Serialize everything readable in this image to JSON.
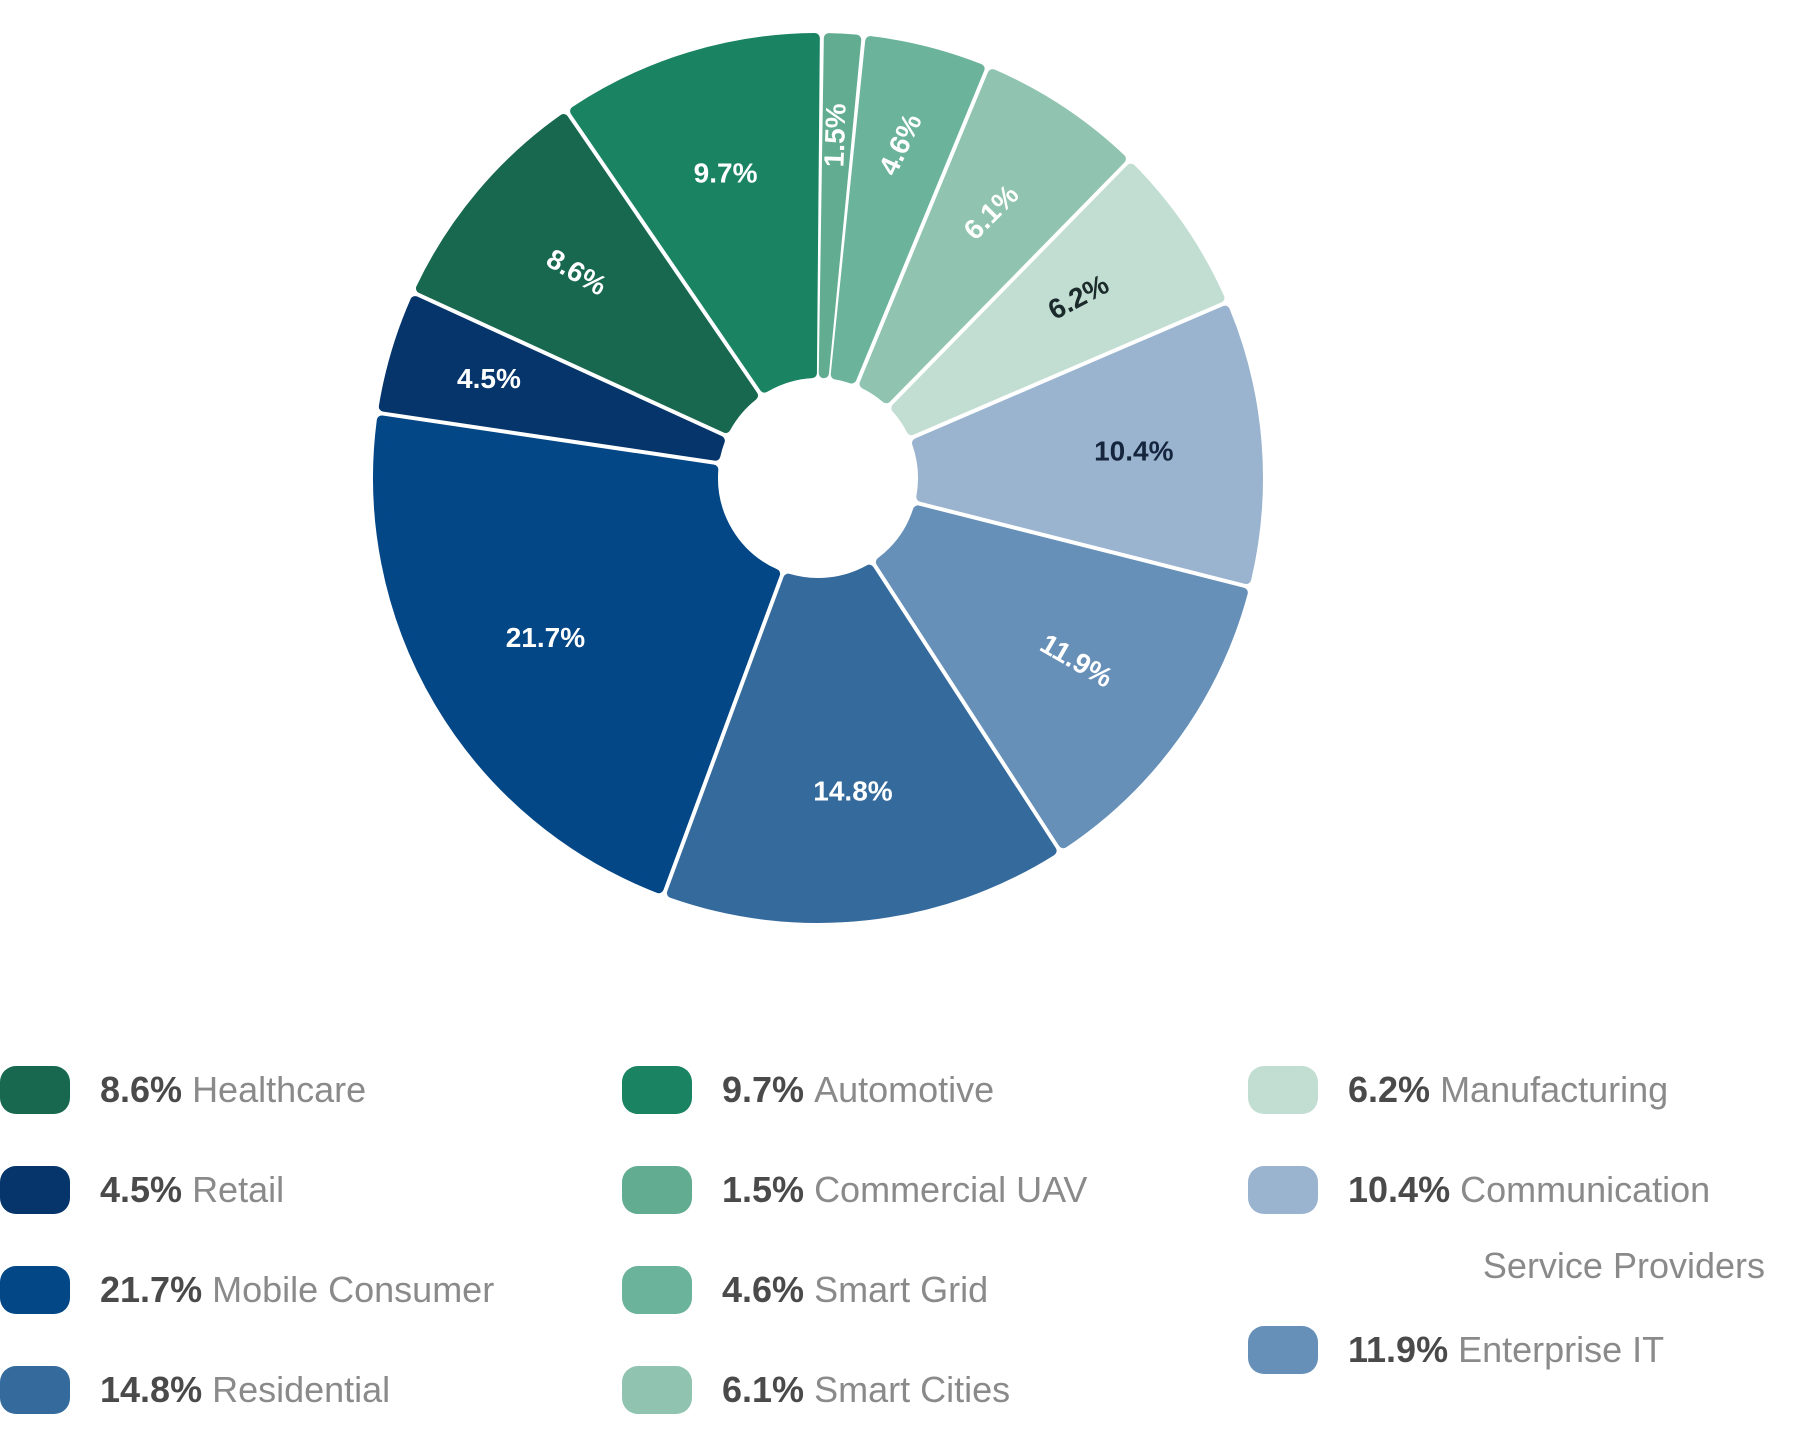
{
  "chart_data": {
    "type": "pie",
    "donut": true,
    "unit": "%",
    "slices": [
      {
        "label": "Commercial UAV",
        "value": 1.5,
        "display": "1.5%",
        "color": "#62ac92",
        "text_color": "#ffffff"
      },
      {
        "label": "Smart Grid",
        "value": 4.6,
        "display": "4.6%",
        "color": "#6bb39b",
        "text_color": "#ffffff"
      },
      {
        "label": "Smart Cities",
        "value": 6.1,
        "display": "6.1%",
        "color": "#90c4b1",
        "text_color": "#ffffff"
      },
      {
        "label": "Manufacturing",
        "value": 6.2,
        "display": "6.2%",
        "color": "#c2ded3",
        "text_color": "#1b2a2a"
      },
      {
        "label": "Communication Service Providers",
        "value": 10.4,
        "display": "10.4%",
        "color": "#9ab4d0",
        "text_color": "#15253d"
      },
      {
        "label": "Enterprise IT",
        "value": 11.9,
        "display": "11.9%",
        "color": "#6690b8",
        "text_color": "#ffffff"
      },
      {
        "label": "Residential",
        "value": 14.8,
        "display": "14.8%",
        "color": "#356a9d",
        "text_color": "#ffffff"
      },
      {
        "label": "Mobile Consumer",
        "value": 21.7,
        "display": "21.7%",
        "color": "#034787",
        "text_color": "#ffffff"
      },
      {
        "label": "Retail",
        "value": 4.5,
        "display": "4.5%",
        "color": "#05356a",
        "text_color": "#ffffff"
      },
      {
        "label": "Healthcare",
        "value": 8.6,
        "display": "8.6%",
        "color": "#17684e",
        "text_color": "#ffffff"
      },
      {
        "label": "Automotive",
        "value": 9.7,
        "display": "9.7%",
        "color": "#1a8462",
        "text_color": "#ffffff"
      }
    ],
    "legend": {
      "placement": "bottom",
      "columns": [
        [
          {
            "value": "8.6%",
            "label": "Healthcare",
            "color": "#17684e"
          },
          {
            "value": "4.5%",
            "label": "Retail",
            "color": "#05356a"
          },
          {
            "value": "21.7%",
            "label": "Mobile Consumer",
            "color": "#034787"
          },
          {
            "value": "14.8%",
            "label": "Residential",
            "color": "#356a9d"
          }
        ],
        [
          {
            "value": "9.7%",
            "label": "Automotive",
            "color": "#1a8462"
          },
          {
            "value": "1.5%",
            "label": "Commercial UAV",
            "color": "#62ac92"
          },
          {
            "value": "4.6%",
            "label": "Smart Grid",
            "color": "#6bb39b"
          },
          {
            "value": "6.1%",
            "label": "Smart Cities",
            "color": "#90c4b1"
          }
        ],
        [
          {
            "value": "6.2%",
            "label": "Manufacturing",
            "color": "#c2ded3"
          },
          {
            "value": "10.4%",
            "label": "Communication",
            "label_cont": "Service Providers",
            "color": "#9ab4d0"
          },
          {
            "value": "11.9%",
            "label": "Enterprise IT",
            "color": "#6690b8"
          }
        ]
      ]
    }
  }
}
